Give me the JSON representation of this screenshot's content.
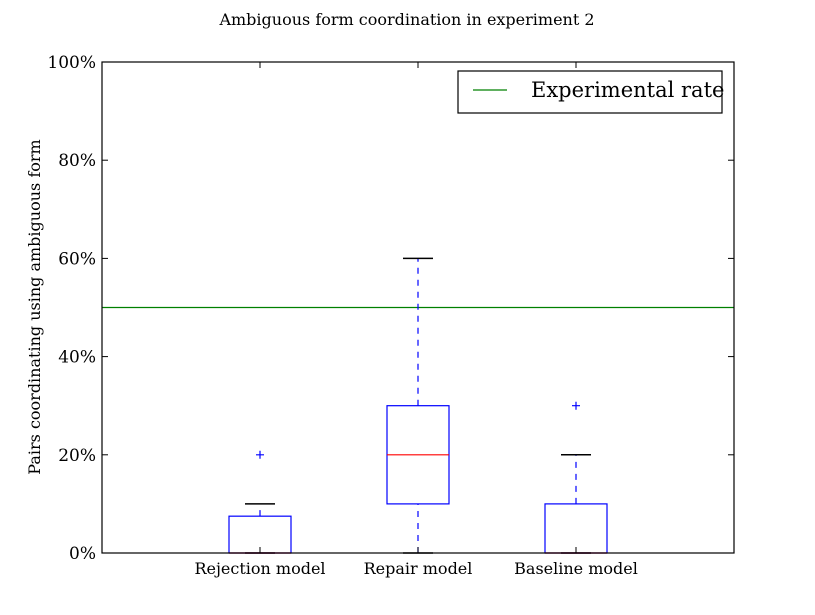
{
  "chart_data": {
    "type": "box",
    "title": "Ambiguous form coordination in experiment 2",
    "xlabel": "",
    "ylabel": "Pairs coordinating using ambiguous form",
    "ylim": [
      0,
      100
    ],
    "yticks": [
      "0%",
      "20%",
      "40%",
      "60%",
      "80%",
      "100%"
    ],
    "ytick_values": [
      0,
      20,
      40,
      60,
      80,
      100
    ],
    "grid": false,
    "legend_position": "top-right",
    "categories": [
      "Rejection model",
      "Repair model",
      "Baseline model"
    ],
    "boxes": [
      {
        "whisker_low": 0,
        "q1": 0,
        "median": 0,
        "q3": 7.5,
        "whisker_high": 10,
        "outliers": [
          20
        ]
      },
      {
        "whisker_low": 0,
        "q1": 10,
        "median": 20,
        "q3": 30,
        "whisker_high": 60,
        "outliers": []
      },
      {
        "whisker_low": 0,
        "q1": 0,
        "median": 0,
        "q3": 10,
        "whisker_high": 20,
        "outliers": [
          30
        ]
      }
    ],
    "reference_line": {
      "name": "Experimental rate",
      "value": 50,
      "color": "#008000"
    },
    "colors": {
      "box": "#0000ff",
      "median": "#ff0000",
      "cap": "#000000",
      "outlier": "#0000ff"
    }
  }
}
